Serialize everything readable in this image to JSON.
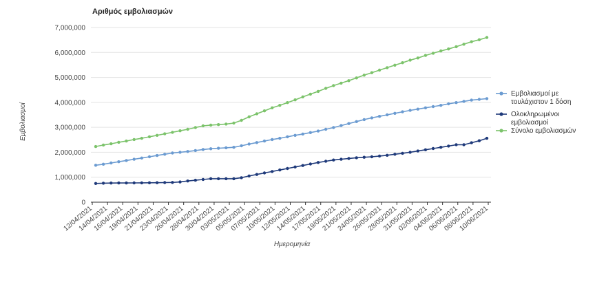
{
  "chart_data": {
    "type": "line",
    "title": "Αριθμός εμβολιασμών",
    "xlabel": "Ημερομηνία",
    "ylabel": "Εμβολιασμοί",
    "ylim": [
      0,
      7000000
    ],
    "yticks": [
      "0",
      "1,000,000",
      "2,000,000",
      "3,000,000",
      "4,000,000",
      "5,000,000",
      "6,000,000",
      "7,000,000"
    ],
    "grid": "horizontal",
    "legend_position": "right",
    "x_tick_labels": [
      "12/04/2021",
      "14/04/2021",
      "16/04/2021",
      "19/04/2021",
      "21/04/2021",
      "23/04/2021",
      "26/04/2021",
      "28/04/2021",
      "30/04/2021",
      "03/05/2021",
      "05/05/2021",
      "07/05/2021",
      "10/05/2021",
      "12/05/2021",
      "14/05/2021",
      "17/05/2021",
      "19/05/2021",
      "21/05/2021",
      "24/05/2021",
      "26/05/2021",
      "28/05/2021",
      "31/05/2021",
      "02/06/2021",
      "04/06/2021",
      "06/06/2021",
      "08/06/2021",
      "10/06/2021"
    ],
    "series": [
      {
        "name": "Εμβολιασμοί με τουλάχιστον 1 δόση",
        "color": "#6b9bd1",
        "values": [
          1480000,
          1520000,
          1570000,
          1620000,
          1670000,
          1720000,
          1770000,
          1820000,
          1870000,
          1920000,
          1970000,
          2000000,
          2030000,
          2070000,
          2110000,
          2140000,
          2160000,
          2180000,
          2200000,
          2260000,
          2330000,
          2390000,
          2450000,
          2510000,
          2560000,
          2620000,
          2680000,
          2730000,
          2790000,
          2850000,
          2920000,
          2990000,
          3070000,
          3150000,
          3230000,
          3310000,
          3380000,
          3440000,
          3500000,
          3560000,
          3620000,
          3680000,
          3730000,
          3780000,
          3830000,
          3880000,
          3940000,
          3990000,
          4040000,
          4090000,
          4120000,
          4150000
        ]
      },
      {
        "name": "Ολοκληρωμένοι εμβολιασμοί",
        "color": "#1f3a7a",
        "values": [
          750000,
          760000,
          765000,
          770000,
          770000,
          772000,
          775000,
          778000,
          780000,
          785000,
          790000,
          810000,
          850000,
          880000,
          910000,
          940000,
          940000,
          940000,
          940000,
          980000,
          1050000,
          1110000,
          1170000,
          1230000,
          1290000,
          1350000,
          1410000,
          1470000,
          1530000,
          1590000,
          1640000,
          1690000,
          1720000,
          1750000,
          1780000,
          1800000,
          1820000,
          1850000,
          1880000,
          1920000,
          1960000,
          2000000,
          2050000,
          2100000,
          2150000,
          2200000,
          2250000,
          2300000,
          2300000,
          2380000,
          2460000,
          2560000
        ]
      },
      {
        "name": "Σύνολο εμβολιασμών",
        "color": "#7cc36b",
        "values": [
          2230000,
          2290000,
          2340000,
          2400000,
          2450000,
          2510000,
          2560000,
          2620000,
          2680000,
          2740000,
          2800000,
          2860000,
          2920000,
          2990000,
          3060000,
          3090000,
          3110000,
          3130000,
          3170000,
          3280000,
          3420000,
          3540000,
          3660000,
          3780000,
          3880000,
          3990000,
          4100000,
          4220000,
          4330000,
          4440000,
          4560000,
          4670000,
          4770000,
          4870000,
          4980000,
          5090000,
          5190000,
          5290000,
          5390000,
          5490000,
          5590000,
          5690000,
          5780000,
          5880000,
          5970000,
          6060000,
          6140000,
          6230000,
          6330000,
          6430000,
          6510000,
          6600000
        ]
      }
    ]
  }
}
